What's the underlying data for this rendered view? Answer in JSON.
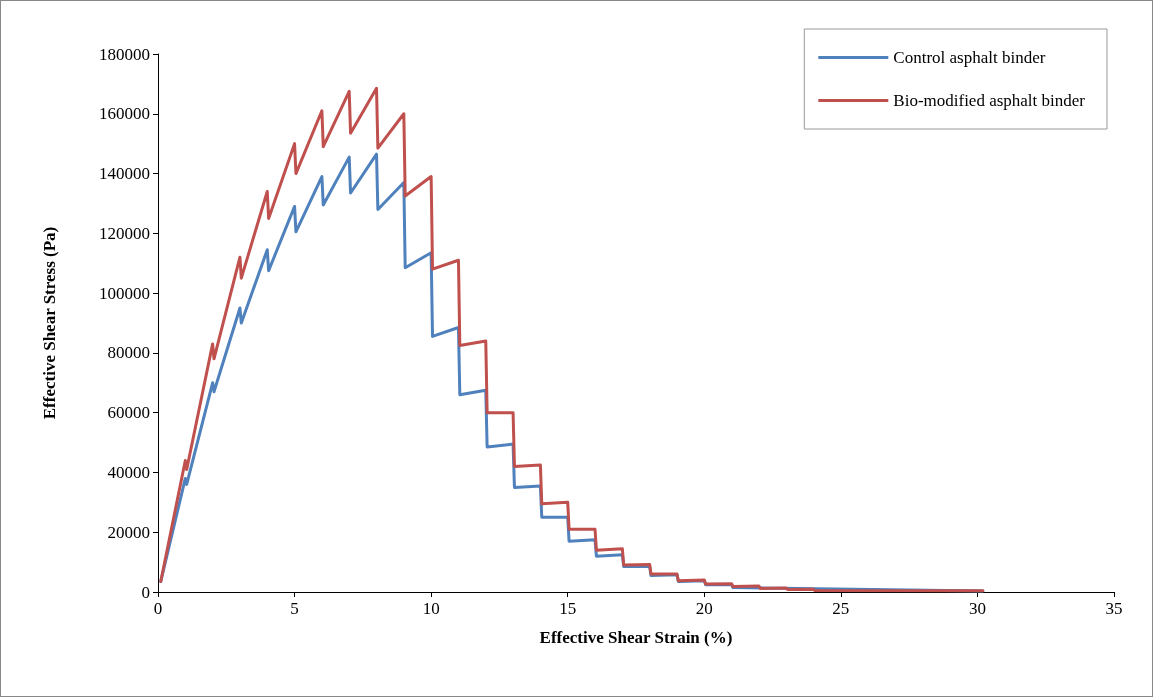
{
  "chart_data": {
    "type": "line",
    "xlabel": "Effective Shear Strain (%)",
    "ylabel": "Effective Shear Stress (Pa)",
    "xlim": [
      0,
      35
    ],
    "xticks": [
      0,
      5,
      10,
      15,
      20,
      25,
      30,
      35
    ],
    "ylim": [
      0,
      180000
    ],
    "yticks": [
      0,
      20000,
      40000,
      60000,
      80000,
      100000,
      120000,
      140000,
      160000,
      180000
    ],
    "grid": false,
    "legend": "top right",
    "marker": "none",
    "line_style": "solid",
    "series": [
      {
        "name": "Control asphalt binder",
        "color": "#4f81bd",
        "x": [
          0.1,
          1,
          1.05,
          2,
          2.05,
          3,
          3.05,
          4,
          4.05,
          5,
          5.05,
          6,
          6.05,
          7,
          7.05,
          8,
          8.05,
          9,
          9.05,
          10,
          10.05,
          11,
          11.05,
          12,
          12.05,
          13,
          13.05,
          14,
          14.05,
          15,
          15.05,
          16,
          16.05,
          17,
          17.05,
          18,
          18.05,
          19,
          19.05,
          20,
          20.05,
          21,
          21.05,
          30.2
        ],
        "values": [
          3500,
          38000,
          36000,
          70000,
          67000,
          95000,
          90000,
          114500,
          107500,
          129000,
          120500,
          139000,
          129500,
          145500,
          133500,
          146500,
          128000,
          137000,
          108500,
          113500,
          85500,
          88500,
          66000,
          67500,
          48500,
          49500,
          35000,
          35500,
          25000,
          25000,
          17000,
          17500,
          12000,
          12500,
          8500,
          8500,
          5500,
          5800,
          3500,
          3800,
          2400,
          2500,
          1500,
          300
        ]
      },
      {
        "name": "Bio-modified asphalt binder",
        "color": "#c0504d",
        "x": [
          0.1,
          1,
          1.05,
          2,
          2.05,
          3,
          3.05,
          4,
          4.05,
          5,
          5.05,
          6,
          6.05,
          7,
          7.05,
          8,
          8.05,
          9,
          9.05,
          10,
          10.05,
          11,
          11.05,
          12,
          12.05,
          13,
          13.05,
          14,
          14.05,
          15,
          15.05,
          16,
          16.05,
          17,
          17.05,
          18,
          18.05,
          19,
          19.05,
          20,
          20.05,
          21,
          21.05,
          22,
          22.05,
          23,
          23.05,
          24,
          24.05,
          30.2
        ],
        "values": [
          3500,
          44000,
          41000,
          83000,
          78000,
          112000,
          105000,
          134000,
          125000,
          150000,
          140000,
          161000,
          149000,
          167500,
          153500,
          168500,
          148500,
          160000,
          132500,
          139000,
          108000,
          111000,
          82500,
          84000,
          60000,
          60000,
          42000,
          42500,
          29500,
          30000,
          21000,
          21000,
          14000,
          14500,
          9000,
          9200,
          6000,
          6000,
          3800,
          4000,
          2700,
          2800,
          1800,
          2000,
          1200,
          1300,
          800,
          900,
          500,
          400
        ]
      }
    ]
  }
}
